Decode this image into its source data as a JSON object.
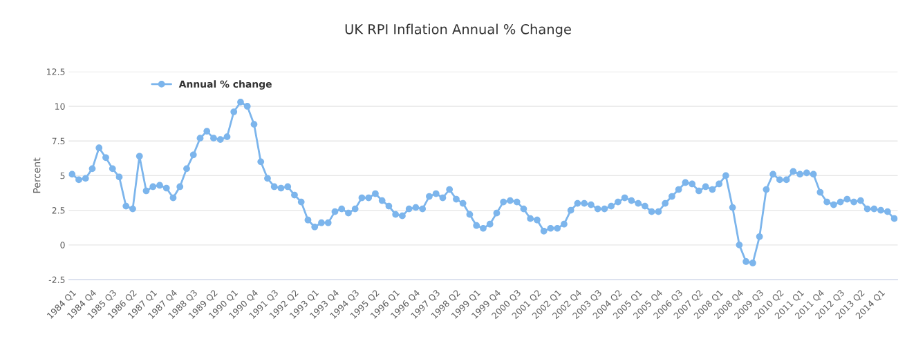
{
  "chart_data": {
    "type": "line",
    "title": "UK RPI Inflation Annual % Change",
    "ylabel": "Percent",
    "categories": [
      "1984 Q1",
      null,
      null,
      "1984 Q4",
      null,
      null,
      "1985 Q3",
      null,
      null,
      "1986 Q2",
      null,
      null,
      "1987 Q1",
      null,
      null,
      "1987 Q4",
      null,
      null,
      "1988 Q3",
      null,
      null,
      "1989 Q2",
      null,
      null,
      "1990 Q1",
      null,
      null,
      "1990 Q4",
      null,
      null,
      "1991 Q3",
      null,
      null,
      "1992 Q2",
      null,
      null,
      "1993 Q1",
      null,
      null,
      "1993 Q4",
      null,
      null,
      "1994 Q3",
      null,
      null,
      "1995 Q2",
      null,
      null,
      "1996 Q1",
      null,
      null,
      "1996 Q4",
      null,
      null,
      "1997 Q3",
      null,
      null,
      "1998 Q2",
      null,
      null,
      "1999 Q1",
      null,
      null,
      "1999 Q4",
      null,
      null,
      "2000 Q3",
      null,
      null,
      "2001 Q2",
      null,
      null,
      "2002 Q1",
      null,
      null,
      "2002 Q4",
      null,
      null,
      "2003 Q3",
      null,
      null,
      "2004 Q2",
      null,
      null,
      "2005 Q1",
      null,
      null,
      "2005 Q4",
      null,
      null,
      "2006 Q3",
      null,
      null,
      "2007 Q2",
      null,
      null,
      "2008 Q1",
      null,
      null,
      "2008 Q4",
      null,
      null,
      "2009 Q3",
      null,
      null,
      "2010 Q2",
      null,
      null,
      "2011 Q1",
      null,
      null,
      "2011 Q4",
      null,
      null,
      "2012 Q3",
      null,
      null,
      "2013 Q2",
      null,
      null,
      "2014 Q1",
      null,
      null
    ],
    "series": [
      {
        "name": "Annual % change",
        "color": "#7cb5ec",
        "values": [
          5.1,
          4.7,
          4.8,
          5.5,
          7.0,
          6.3,
          5.5,
          4.9,
          2.8,
          2.6,
          6.4,
          3.9,
          4.2,
          4.3,
          4.1,
          3.4,
          4.2,
          5.5,
          6.5,
          7.7,
          8.2,
          7.7,
          7.6,
          7.8,
          9.6,
          10.3,
          10.0,
          8.7,
          6.0,
          4.8,
          4.2,
          4.1,
          4.2,
          3.6,
          3.1,
          1.8,
          1.3,
          1.6,
          1.6,
          2.4,
          2.6,
          2.3,
          2.6,
          3.4,
          3.4,
          3.7,
          3.2,
          2.8,
          2.2,
          2.1,
          2.6,
          2.7,
          2.6,
          3.5,
          3.7,
          3.4,
          4.0,
          3.3,
          3.0,
          2.2,
          1.4,
          1.2,
          1.5,
          2.3,
          3.1,
          3.2,
          3.1,
          2.6,
          1.9,
          1.8,
          1.0,
          1.2,
          1.2,
          1.5,
          2.5,
          3.0,
          3.0,
          2.9,
          2.6,
          2.6,
          2.8,
          3.1,
          3.4,
          3.2,
          3.0,
          2.8,
          2.4,
          2.4,
          3.0,
          3.5,
          4.0,
          4.5,
          4.4,
          3.9,
          4.2,
          4.0,
          4.4,
          5.0,
          2.7,
          0.0,
          -1.2,
          -1.3,
          0.6,
          4.0,
          5.1,
          4.7,
          4.7,
          5.3,
          5.1,
          5.2,
          5.1,
          3.8,
          3.1,
          2.9,
          3.1,
          3.3,
          3.1,
          3.2,
          2.6,
          2.6,
          2.5,
          2.4,
          1.9
        ]
      }
    ],
    "ylim": [
      -2.5,
      12.5
    ],
    "yticks": [
      -2.5,
      0,
      2.5,
      5,
      7.5,
      10,
      12.5
    ],
    "grid": "y",
    "legend": "top left",
    "marker": "circle",
    "line_style": "solid"
  }
}
